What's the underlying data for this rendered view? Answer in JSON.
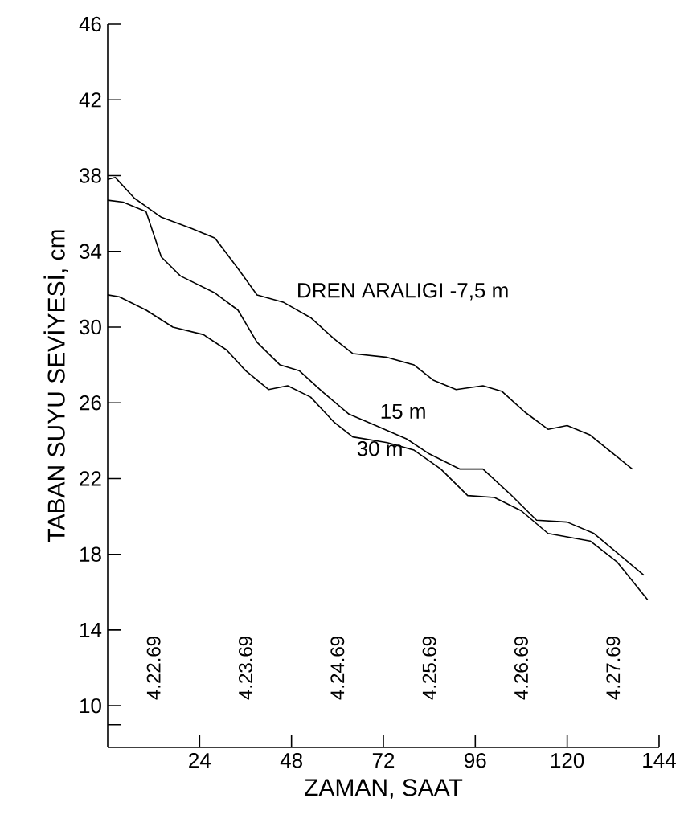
{
  "chart_data": {
    "type": "line",
    "xlabel": "ZAMAN, SAAT",
    "ylabel": "TABAN SUYU SEVİYESİ, cm",
    "xlim": [
      0,
      144
    ],
    "ylim": [
      7.8,
      46
    ],
    "xticks": [
      24,
      48,
      72,
      96,
      120,
      144
    ],
    "yticks": [
      {
        "value": 9,
        "label": null
      },
      10,
      14,
      18,
      22,
      26,
      30,
      34,
      38,
      42,
      46
    ],
    "series": [
      {
        "name": "DREN ARALIGI -7,5 m",
        "color": "#000000",
        "x": [
          0,
          2,
          7,
          14,
          22,
          28,
          34,
          39,
          46,
          53,
          59,
          64,
          73,
          80,
          85,
          91,
          98,
          103,
          109,
          115,
          120,
          126,
          137
        ],
        "values": [
          37.8,
          37.9,
          36.8,
          35.8,
          35.2,
          34.7,
          33.1,
          31.7,
          31.3,
          30.5,
          29.4,
          28.6,
          28.4,
          28.0,
          27.2,
          26.7,
          26.9,
          26.6,
          25.5,
          24.6,
          24.8,
          24.3,
          22.5
        ]
      },
      {
        "name": "15 m",
        "color": "#000000",
        "x": [
          0,
          4,
          10,
          14,
          19,
          28,
          34,
          39,
          45,
          50,
          56,
          63,
          70,
          78,
          84,
          92,
          98,
          105,
          112,
          120,
          127,
          140
        ],
        "values": [
          36.7,
          36.6,
          36.1,
          33.7,
          32.7,
          31.8,
          30.9,
          29.2,
          28.0,
          27.7,
          26.6,
          25.4,
          24.8,
          24.1,
          23.3,
          22.5,
          22.5,
          21.2,
          19.8,
          19.7,
          19.1,
          16.9
        ]
      },
      {
        "name": "30 m",
        "color": "#000000",
        "x": [
          0,
          3,
          10,
          17,
          25,
          31,
          36,
          42,
          47,
          53,
          59,
          64,
          73,
          80,
          87,
          94,
          101,
          108,
          115,
          126,
          133,
          141
        ],
        "values": [
          31.7,
          31.6,
          30.9,
          30.0,
          29.6,
          28.8,
          27.7,
          26.7,
          26.9,
          26.3,
          25.0,
          24.2,
          23.9,
          23.5,
          22.5,
          21.1,
          21.0,
          20.3,
          19.1,
          18.7,
          17.6,
          15.6
        ]
      }
    ],
    "annotations": [
      "4.22.69",
      "4.23.69",
      "4.24.69",
      "4.25.69",
      "4.26.69",
      "4.27.69"
    ]
  }
}
